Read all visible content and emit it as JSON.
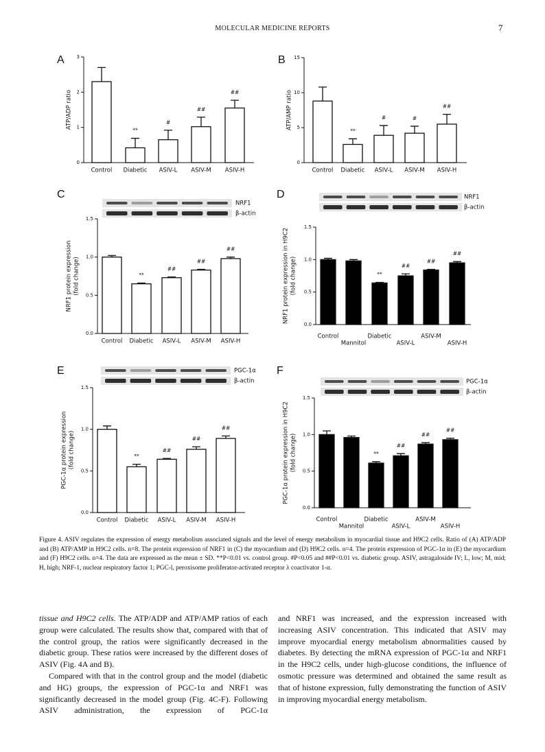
{
  "header": {
    "journal": "MOLECULAR MEDICINE REPORTS",
    "page": "7"
  },
  "chart_data": [
    {
      "type": "bar",
      "panel": "A",
      "ylabel": [
        "ATP/ADP ratio"
      ],
      "categories": [
        "Control",
        "Diabetic",
        "ASIV-L",
        "ASIV-M",
        "ASIV-H"
      ],
      "values": [
        2.3,
        0.42,
        0.65,
        1.02,
        1.55
      ],
      "errors": [
        0.4,
        0.27,
        0.27,
        0.27,
        0.22
      ],
      "annotations": [
        null,
        "**",
        "#",
        "##",
        "##"
      ],
      "color": "#ffffff",
      "ylim": [
        0,
        3
      ],
      "yticks": [
        0,
        1,
        2,
        3
      ]
    },
    {
      "type": "bar",
      "panel": "B",
      "ylabel": [
        "ATP/AMP ratio"
      ],
      "categories": [
        "Control",
        "Diabetic",
        "ASIV-L",
        "ASIV-M",
        "ASIV-H"
      ],
      "values": [
        8.8,
        2.6,
        3.9,
        4.2,
        5.5
      ],
      "errors": [
        2.0,
        0.8,
        1.4,
        1.0,
        1.4
      ],
      "annotations": [
        null,
        "**",
        "#",
        "#",
        "##"
      ],
      "color": "#ffffff",
      "ylim": [
        0,
        15
      ],
      "yticks": [
        0,
        5,
        10,
        15
      ]
    },
    {
      "type": "bar",
      "panel": "C",
      "ylabel": [
        "NRF1 protein expression",
        "(fold change)"
      ],
      "blot_labels": [
        "NRF1",
        "β-actin"
      ],
      "categories": [
        "Control",
        "Diabetic",
        "ASIV-L",
        "ASIV-M",
        "ASIV-H"
      ],
      "values": [
        1.0,
        0.65,
        0.73,
        0.83,
        0.98
      ],
      "errors": [
        0.02,
        0.01,
        0.01,
        0.01,
        0.02
      ],
      "annotations": [
        null,
        "**",
        "##",
        "##",
        "##"
      ],
      "color": "#ffffff",
      "ylim": [
        0,
        1.5
      ],
      "yticks": [
        {
          "value": 0,
          "label": "0.0"
        },
        {
          "value": 0.5,
          "label": "0.5"
        },
        {
          "value": 1,
          "label": "1.0"
        },
        {
          "value": 1.5,
          "label": "1.5"
        }
      ]
    },
    {
      "type": "bar",
      "panel": "D",
      "ylabel": [
        "NRF1 protein expression in H9C2",
        "(fold change)"
      ],
      "blot_labels": [
        "NRF1",
        "β-actin"
      ],
      "categories": [
        "Control",
        "Mannitol",
        "Diabetic",
        "ASIV-L",
        "ASIV-M",
        "ASIV-H"
      ],
      "values": [
        1.0,
        0.98,
        0.64,
        0.75,
        0.84,
        0.95
      ],
      "errors": [
        0.02,
        0.02,
        0.01,
        0.03,
        0.01,
        0.02
      ],
      "annotations": [
        null,
        null,
        "**",
        "##",
        "##",
        "##"
      ],
      "color": "#000000",
      "ylim": [
        0,
        1.5
      ],
      "yticks": [
        {
          "value": 0,
          "label": "0.0"
        },
        {
          "value": 0.5,
          "label": "0.5"
        },
        {
          "value": 1,
          "label": "1.0"
        },
        {
          "value": 1.5,
          "label": "1.5"
        }
      ]
    },
    {
      "type": "bar",
      "panel": "E",
      "ylabel": [
        "PGC-1α protein expression",
        "(fold change)"
      ],
      "blot_labels": [
        "PGC-1α",
        "β-actin"
      ],
      "categories": [
        "Control",
        "Diabetic",
        "ASIV-L",
        "ASIV-M",
        "ASIV-H"
      ],
      "values": [
        1.0,
        0.55,
        0.64,
        0.76,
        0.89
      ],
      "errors": [
        0.04,
        0.03,
        0.01,
        0.03,
        0.03
      ],
      "annotations": [
        null,
        "**",
        "##",
        "##",
        "##"
      ],
      "color": "#ffffff",
      "ylim": [
        0,
        1.5
      ],
      "yticks": [
        {
          "value": 0,
          "label": "0.0"
        },
        {
          "value": 0.5,
          "label": "0.5"
        },
        {
          "value": 1,
          "label": "1.0"
        },
        {
          "value": 1.5,
          "label": "1.5"
        }
      ]
    },
    {
      "type": "bar",
      "panel": "F",
      "ylabel": [
        "PGC-1α protein expression in H9C2",
        "(fold change)"
      ],
      "blot_labels": [
        "PGC-1α",
        "β-actin"
      ],
      "categories": [
        "Control",
        "Mannitol",
        "Diabetic",
        "ASIV-L",
        "ASIV-M",
        "ASIV-H"
      ],
      "values": [
        1.0,
        0.96,
        0.61,
        0.71,
        0.87,
        0.93
      ],
      "errors": [
        0.05,
        0.02,
        0.02,
        0.03,
        0.02,
        0.02
      ],
      "annotations": [
        null,
        null,
        "**",
        "##",
        "##",
        "##"
      ],
      "color": "#000000",
      "ylim": [
        0,
        1.5
      ],
      "yticks": [
        {
          "value": 0,
          "label": "0.0"
        },
        {
          "value": 0.5,
          "label": "0.5"
        },
        {
          "value": 1,
          "label": "1.0"
        },
        {
          "value": 1.5,
          "label": "1.5"
        }
      ]
    }
  ],
  "caption": "Figure 4. ASIV regulates the expression of energy metabolism associated signals and the level of energy metabolism in myocardial tissue and H9C2 cells. Ratio of (A) ATP/ADP and (B) ATP/AMP in H9C2 cells. n=8. The protein expression of NRF1 in (C) the myocardium and (D) H9C2 cells. n=4. The protein expression of PGC-1α in (E) the myocardium and (F) H9C2 cells. n=4. The data are expressed as the mean ± SD. **P<0.01 vs. control group. #P<0.05 and ##P<0.01 vs. diabetic group. ASIV, astragaloside IV; L, low; M, mid; H, high; NRF-1, nuclear respiratory factor 1; PGC-l, peroxisome proliferator-activated receptor λ coactivator 1-α.",
  "body": {
    "left": [
      {
        "italic": "tissue and H9C2 cells.",
        "text": " The ATP/ADP and ATP/AMP ratios of each group were calculated. The results show that, compared with that of the control group, the ratios were significantly decreased in the diabetic group. These ratios were increased by the different doses of ASIV (Fig. 4A and B)."
      },
      {
        "text": "Compared with that in the control group and the model (diabetic and HG) groups, the expression of PGC-1α and NRF1 was significantly decreased in the model group (Fig. 4C-F). Following ASIV administration, the expression of PGC-1α"
      }
    ],
    "right": [
      {
        "text": "and NRF1 was increased, and the expression increased with increasing ASIV concentration. This indicated that ASIV may improve myocardial energy metabolism abnormalities caused by diabetes. By detecting the mRNA expression of PGC-1α and NRF1 in the H9C2 cells, under high-glucose conditions, the influence of osmotic pressure was determined and obtained the same result as that of histone expression, fully demonstrating the function of ASIV in improving myocardial energy metabolism."
      }
    ]
  }
}
